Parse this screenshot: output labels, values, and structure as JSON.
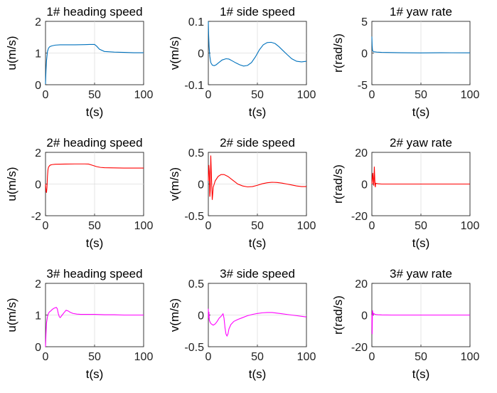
{
  "chart_data": [
    {
      "type": "line",
      "title": "1# heading speed",
      "xlabel": "t(s)",
      "ylabel": "u(m/s)",
      "xlim": [
        0,
        100
      ],
      "ylim": [
        0,
        2
      ],
      "xticks": [
        0,
        50,
        100
      ],
      "yticks": [
        0,
        1,
        2
      ],
      "xtick_labels": [
        "0",
        "50",
        "100"
      ],
      "ytick_labels": [
        "0",
        "1",
        "2"
      ],
      "grid": true,
      "color": "#0072BD",
      "x": [
        0,
        0.5,
        1,
        2,
        3,
        4,
        5,
        7,
        10,
        15,
        20,
        30,
        40,
        45,
        50,
        52,
        55,
        60,
        70,
        80,
        90,
        100
      ],
      "y": [
        0.02,
        0.45,
        0.75,
        1.05,
        1.15,
        1.19,
        1.21,
        1.23,
        1.25,
        1.26,
        1.26,
        1.26,
        1.265,
        1.27,
        1.27,
        1.22,
        1.12,
        1.05,
        1.03,
        1.02,
        1.01,
        1.01
      ]
    },
    {
      "type": "line",
      "title": "1# side speed",
      "xlabel": "t(s)",
      "ylabel": "v(m/s)",
      "xlim": [
        0,
        100
      ],
      "ylim": [
        -0.1,
        0.1
      ],
      "xticks": [
        0,
        50,
        100
      ],
      "yticks": [
        -0.1,
        0,
        0.1
      ],
      "xtick_labels": [
        "0",
        "50",
        "100"
      ],
      "ytick_labels": [
        "-0.1",
        "0",
        "0.1"
      ],
      "grid": true,
      "color": "#0072BD",
      "x": [
        0,
        0.3,
        0.8,
        1.5,
        2.5,
        4,
        6,
        8,
        10,
        14,
        18,
        21,
        24,
        28,
        32,
        36,
        40,
        44,
        48,
        52,
        56,
        60,
        64,
        68,
        72,
        76,
        80,
        85,
        90,
        95,
        100
      ],
      "y": [
        0.1,
        0.06,
        0.02,
        -0.01,
        -0.03,
        -0.038,
        -0.04,
        -0.037,
        -0.032,
        -0.022,
        -0.018,
        -0.019,
        -0.024,
        -0.031,
        -0.037,
        -0.041,
        -0.039,
        -0.03,
        -0.012,
        0.01,
        0.026,
        0.033,
        0.034,
        0.03,
        0.02,
        0.008,
        -0.004,
        -0.018,
        -0.026,
        -0.028,
        -0.026
      ]
    },
    {
      "type": "line",
      "title": "1# yaw rate",
      "xlabel": "t(s)",
      "ylabel": "r(rad/s)",
      "xlim": [
        0,
        100
      ],
      "ylim": [
        -5,
        5
      ],
      "xticks": [
        0,
        50,
        100
      ],
      "yticks": [
        -5,
        0,
        5
      ],
      "xtick_labels": [
        "0",
        "50",
        "100"
      ],
      "ytick_labels": [
        "-5",
        "0",
        "5"
      ],
      "grid": true,
      "color": "#0072BD",
      "x": [
        0,
        0.3,
        0.6,
        1,
        2,
        5,
        10,
        30,
        50,
        70,
        100
      ],
      "y": [
        2.6,
        1.2,
        0.5,
        0.3,
        0.2,
        0.15,
        0.1,
        0.05,
        0.02,
        0.05,
        0.03
      ]
    },
    {
      "type": "line",
      "title": "2# heading speed",
      "xlabel": "t(s)",
      "ylabel": "u(m/s)",
      "xlim": [
        0,
        100
      ],
      "ylim": [
        -2,
        2
      ],
      "xticks": [
        0,
        50,
        100
      ],
      "yticks": [
        -2,
        0,
        2
      ],
      "xtick_labels": [
        "0",
        "50",
        "100"
      ],
      "ytick_labels": [
        "-2",
        "0",
        "2"
      ],
      "grid": true,
      "color": "#FF0000",
      "x": [
        0,
        0.5,
        1,
        1.5,
        2,
        2.5,
        3,
        4,
        5,
        7,
        10,
        20,
        30,
        40,
        44,
        48,
        52,
        56,
        60,
        70,
        80,
        100
      ],
      "y": [
        0,
        -0.4,
        -0.55,
        -0.2,
        0.5,
        0.9,
        1.05,
        1.15,
        1.2,
        1.23,
        1.25,
        1.26,
        1.27,
        1.27,
        1.26,
        1.18,
        1.1,
        1.05,
        1.03,
        1.02,
        1.01,
        1.01
      ]
    },
    {
      "type": "line",
      "title": "2# side speed",
      "xlabel": "t(s)",
      "ylabel": "v(m/s)",
      "xlim": [
        0,
        100
      ],
      "ylim": [
        -0.5,
        0.5
      ],
      "xticks": [
        0,
        50,
        100
      ],
      "yticks": [
        -0.5,
        0,
        0.5
      ],
      "xtick_labels": [
        "0",
        "50",
        "100"
      ],
      "ytick_labels": [
        "-0.5",
        "0",
        "0.5"
      ],
      "grid": true,
      "color": "#FF0000",
      "x": [
        0,
        0.5,
        1,
        1.5,
        2,
        2.5,
        3,
        4,
        5,
        7,
        10,
        13,
        16,
        20,
        25,
        30,
        35,
        40,
        45,
        50,
        55,
        60,
        65,
        70,
        75,
        80,
        85,
        90,
        95,
        100
      ],
      "y": [
        0.05,
        0.3,
        0.2,
        -0.2,
        -0.1,
        0.45,
        0.2,
        -0.25,
        -0.05,
        0.05,
        0.12,
        0.15,
        0.15,
        0.12,
        0.06,
        0.0,
        -0.03,
        -0.045,
        -0.04,
        -0.02,
        0.005,
        0.02,
        0.028,
        0.025,
        0.015,
        0.0,
        -0.015,
        -0.03,
        -0.04,
        -0.04
      ]
    },
    {
      "type": "line",
      "title": "2# yaw rate",
      "xlabel": "t(s)",
      "ylabel": "r(rad/s)",
      "xlim": [
        0,
        100
      ],
      "ylim": [
        -20,
        20
      ],
      "xticks": [
        0,
        50,
        100
      ],
      "yticks": [
        -20,
        0,
        20
      ],
      "xtick_labels": [
        "0",
        "50",
        "100"
      ],
      "ytick_labels": [
        "-20",
        "0",
        "20"
      ],
      "grid": true,
      "color": "#FF0000",
      "x": [
        0,
        0.5,
        1,
        1.5,
        2,
        2.5,
        3,
        3.5,
        4,
        6,
        10,
        20,
        50,
        100
      ],
      "y": [
        0,
        4,
        7,
        1,
        -1,
        11,
        3,
        -2,
        0.5,
        0.2,
        0,
        0,
        0,
        0
      ]
    },
    {
      "type": "line",
      "title": "3# heading speed",
      "xlabel": "t(s)",
      "ylabel": "u(m/s)",
      "xlim": [
        0,
        100
      ],
      "ylim": [
        0,
        2
      ],
      "xticks": [
        0,
        50,
        100
      ],
      "yticks": [
        0,
        1,
        2
      ],
      "xtick_labels": [
        "0",
        "50",
        "100"
      ],
      "ytick_labels": [
        "0",
        "1",
        "2"
      ],
      "grid": true,
      "color": "#FF00FF",
      "x": [
        0,
        0.5,
        1,
        2,
        3,
        4,
        5,
        7,
        9,
        11,
        12,
        13,
        14,
        15,
        17,
        19,
        21,
        23,
        25,
        28,
        32,
        36,
        40,
        50,
        60,
        70,
        80,
        90,
        100
      ],
      "y": [
        0,
        0.4,
        0.75,
        0.95,
        1.05,
        1.1,
        1.12,
        1.18,
        1.22,
        1.24,
        1.2,
        1.05,
        0.95,
        0.92,
        1.0,
        1.08,
        1.15,
        1.13,
        1.09,
        1.05,
        1.03,
        1.02,
        1.02,
        1.02,
        1.01,
        1.01,
        1.0,
        1.0,
        1.0
      ]
    },
    {
      "type": "line",
      "title": "3# side speed",
      "xlabel": "t(s)",
      "ylabel": "v(m/s)",
      "xlim": [
        0,
        100
      ],
      "ylim": [
        -0.5,
        0.5
      ],
      "xticks": [
        0,
        50,
        100
      ],
      "yticks": [
        -0.5,
        0,
        0.5
      ],
      "xtick_labels": [
        "0",
        "50",
        "100"
      ],
      "ytick_labels": [
        "-0.5",
        "0",
        "0.5"
      ],
      "grid": true,
      "color": "#FF00FF",
      "x": [
        0,
        0.3,
        0.6,
        1,
        2,
        3,
        5,
        7,
        9,
        11,
        13,
        15,
        16,
        17,
        18,
        19,
        20,
        21,
        23,
        26,
        30,
        35,
        40,
        45,
        50,
        55,
        60,
        65,
        70,
        75,
        80,
        85,
        90,
        95,
        100
      ],
      "y": [
        0.1,
        -0.05,
        0.05,
        -0.08,
        -0.12,
        -0.14,
        -0.16,
        -0.14,
        -0.1,
        -0.05,
        -0.02,
        0.02,
        -0.05,
        -0.2,
        -0.3,
        -0.33,
        -0.3,
        -0.22,
        -0.15,
        -0.1,
        -0.07,
        -0.04,
        -0.01,
        0.01,
        0.025,
        0.035,
        0.04,
        0.04,
        0.03,
        0.02,
        0.01,
        0.0,
        -0.01,
        -0.02,
        -0.03
      ]
    },
    {
      "type": "line",
      "title": "3# yaw rate",
      "xlabel": "t(s)",
      "ylabel": "r(rad/s)",
      "xlim": [
        0,
        100
      ],
      "ylim": [
        -20,
        20
      ],
      "xticks": [
        0,
        50,
        100
      ],
      "yticks": [
        -20,
        0,
        20
      ],
      "xtick_labels": [
        "0",
        "50",
        "100"
      ],
      "ytick_labels": [
        "-20",
        "0",
        "20"
      ],
      "grid": true,
      "color": "#FF00FF",
      "x": [
        0,
        0.3,
        0.6,
        1,
        1.5,
        2,
        3,
        4,
        6,
        10,
        20,
        50,
        100
      ],
      "y": [
        0,
        -12,
        3,
        1.5,
        0.5,
        1,
        0.5,
        0.3,
        0.2,
        0.1,
        0,
        0,
        0
      ]
    }
  ]
}
